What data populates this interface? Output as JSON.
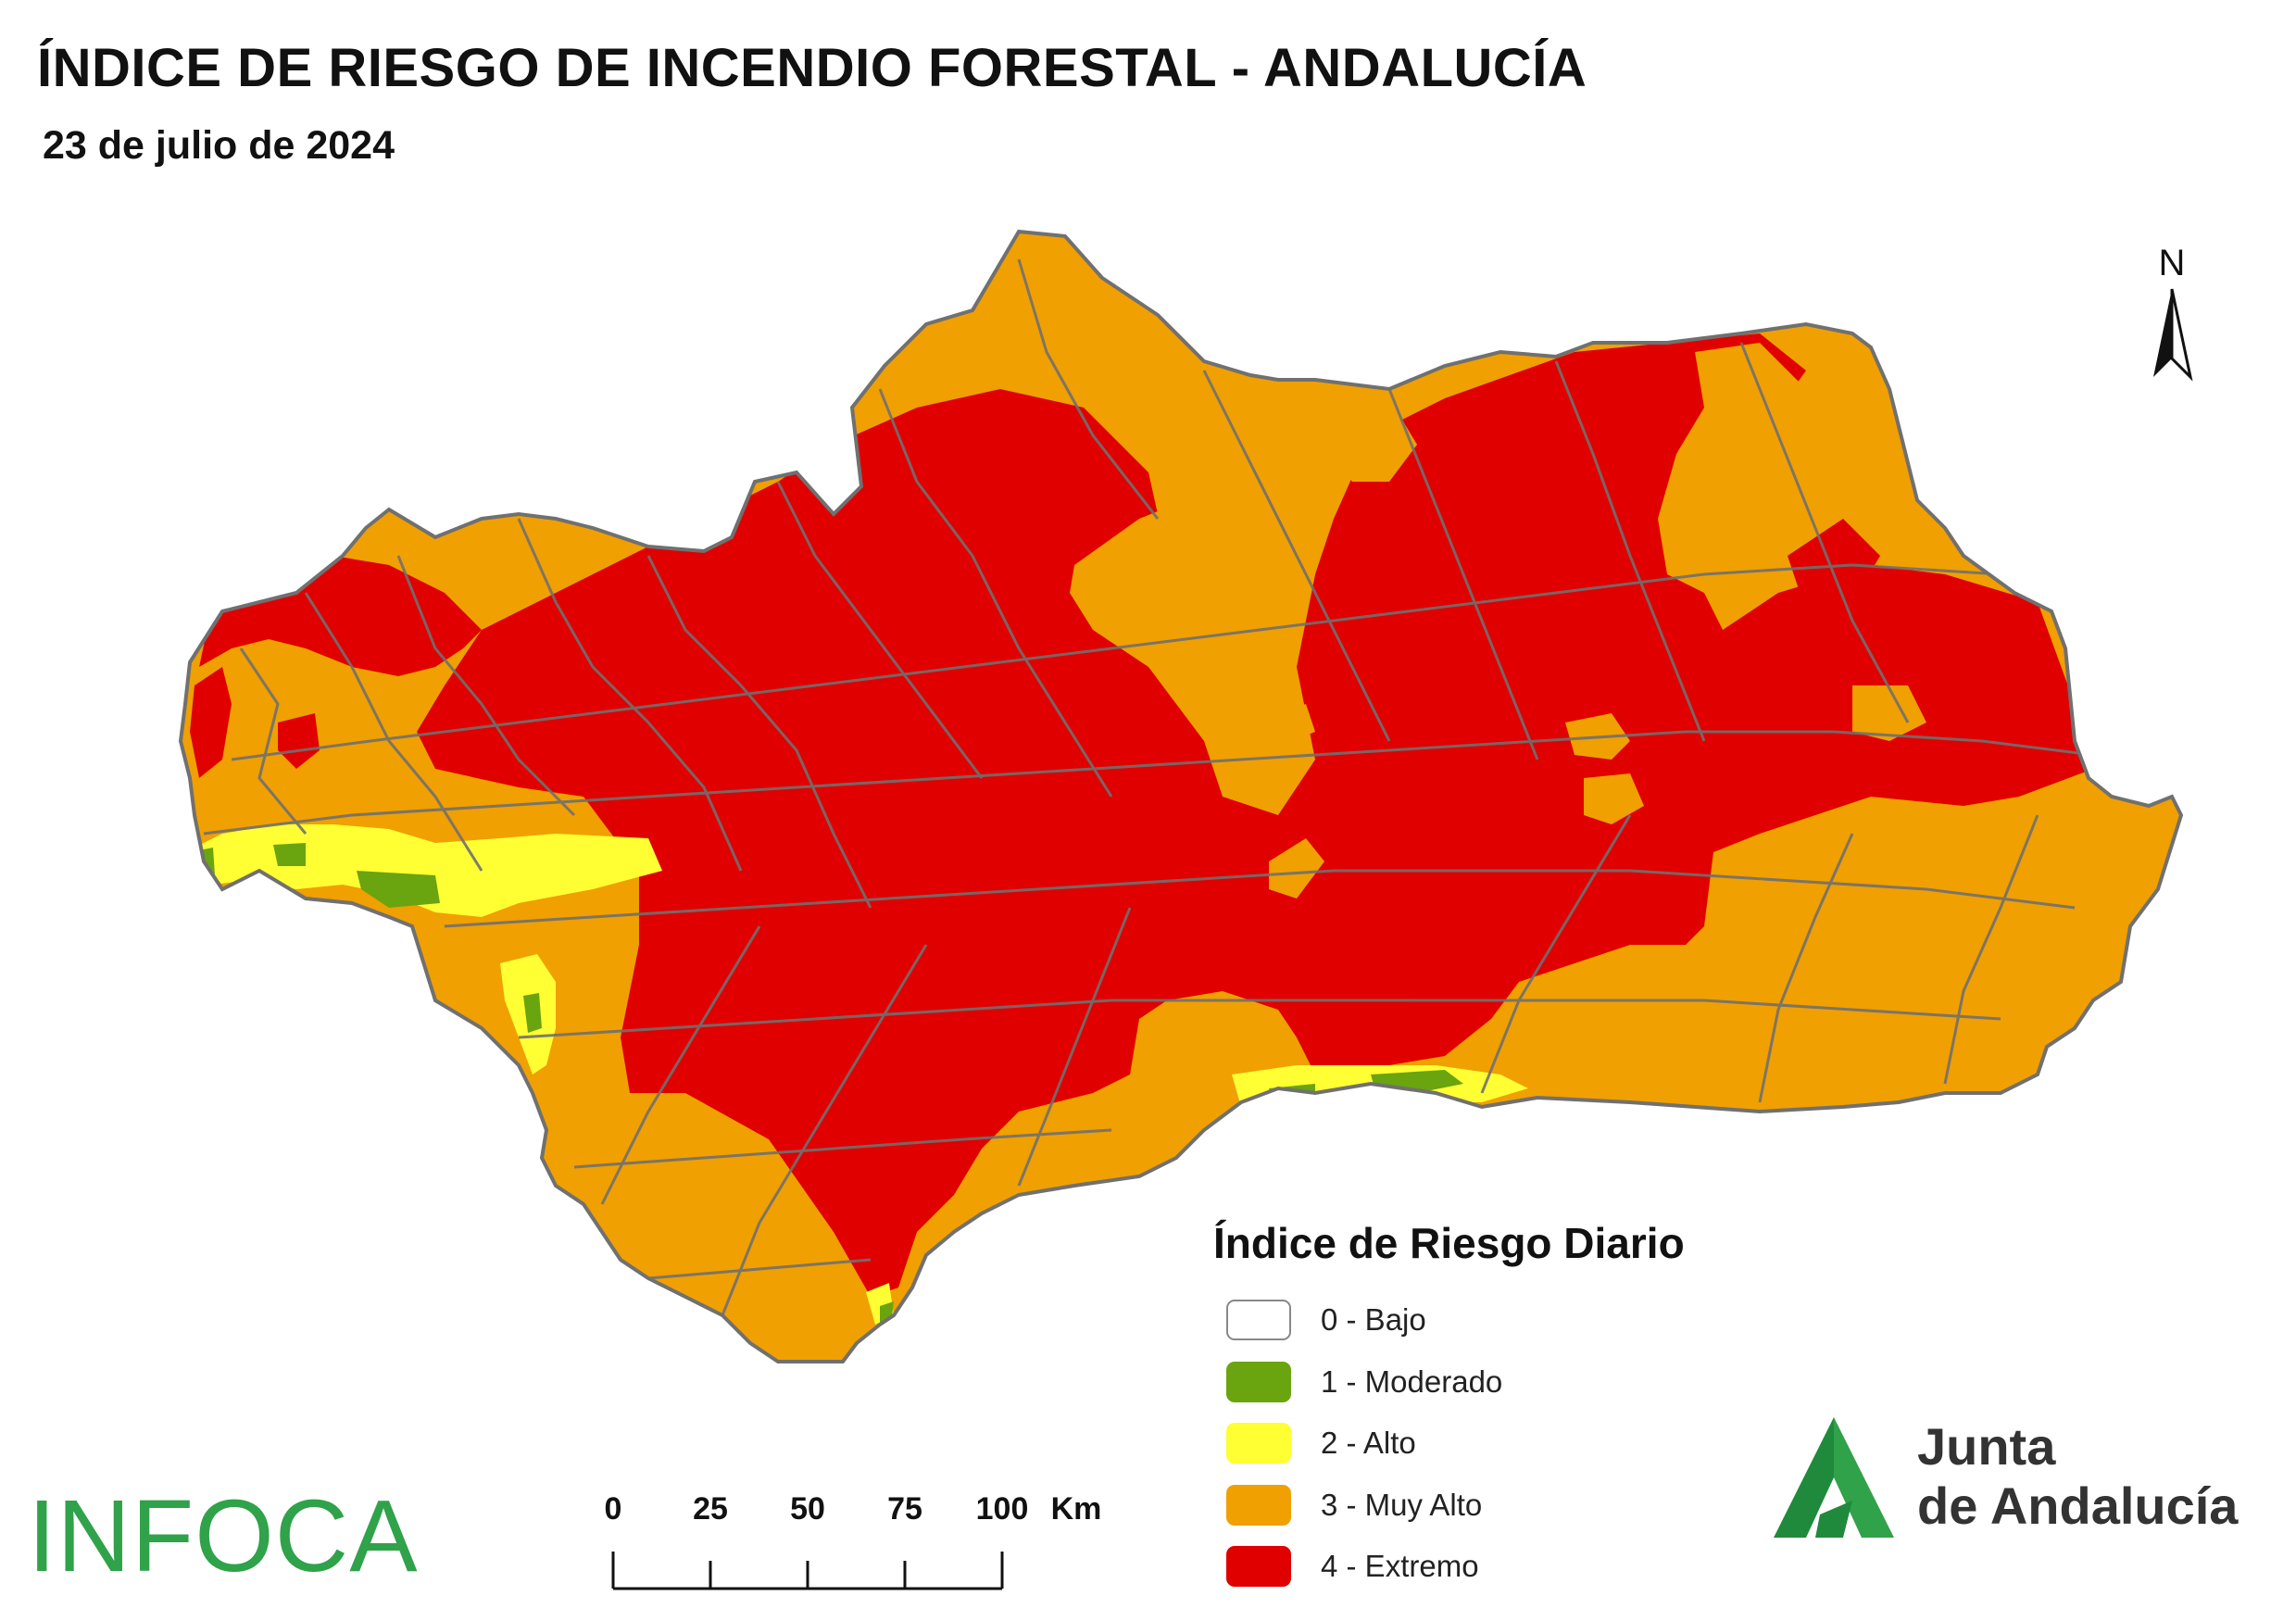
{
  "header": {
    "title": "ÍNDICE DE RIESGO DE INCENDIO FORESTAL - ANDALUCÍA",
    "date": "23 de julio de 2024"
  },
  "north_arrow": {
    "label": "N"
  },
  "legend": {
    "title": "Índice de Riesgo Diario",
    "items": [
      {
        "label": "0 - Bajo",
        "color": "#ffffff"
      },
      {
        "label": "1 - Moderado",
        "color": "#6aa40f"
      },
      {
        "label": "2 - Alto",
        "color": "#ffff33"
      },
      {
        "label": "3 - Muy Alto",
        "color": "#f0a000"
      },
      {
        "label": "4 - Extremo",
        "color": "#e00000"
      }
    ]
  },
  "scale_bar": {
    "ticks": [
      "0",
      "25",
      "50",
      "75",
      "100"
    ],
    "unit": "Km"
  },
  "logos": {
    "infoca": "INFOCA",
    "junta_line1": "Junta",
    "junta_line2": "de Andalucía"
  },
  "colors": {
    "boundary": "#707070",
    "extremo": "#e00000",
    "muy_alto": "#f0a000",
    "alto": "#ffff33",
    "moderado": "#6aa40f",
    "junta_green": "#1f8a3c"
  }
}
